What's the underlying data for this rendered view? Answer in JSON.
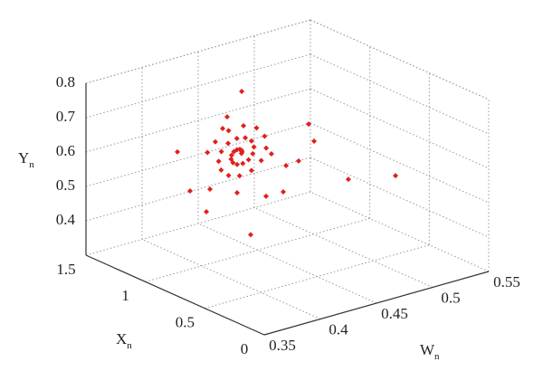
{
  "chart_data": {
    "type": "scatter3d",
    "color": "#e0201b",
    "grid": true,
    "xlabel": {
      "text": "W",
      "sub": "n"
    },
    "ylabel": {
      "text": "X",
      "sub": "n"
    },
    "zlabel": {
      "text": "Y",
      "sub": "n"
    },
    "xlim": [
      0.35,
      0.55
    ],
    "xticks": [
      0.35,
      0.4,
      0.45,
      0.5,
      0.55
    ],
    "ylim": [
      0,
      1.5
    ],
    "yticks": [
      0,
      0.5,
      1,
      1.5
    ],
    "zlim": [
      0.3,
      0.8
    ],
    "zticks": [
      0.4,
      0.5,
      0.6,
      0.7,
      0.8
    ],
    "x": [
      0.4568,
      0.4573,
      0.4569,
      0.4553,
      0.4528,
      0.45,
      0.448,
      0.4476,
      0.4492,
      0.4529,
      0.458,
      0.4631,
      0.4669,
      0.4679,
      0.4657,
      0.4602,
      0.4527,
      0.4449,
      0.4389,
      0.4365,
      0.4387,
      0.4453,
      0.4551,
      0.4657,
      0.4744,
      0.4788,
      0.4774,
      0.4702,
      0.4586,
      0.4453,
      0.4335,
      0.4265,
      0.457,
      0.3997,
      0.411,
      0.4255,
      0.465,
      0.5166,
      0.5215,
      0.4885,
      0.5305,
      0.5077,
      0.4965,
      0.494,
      0.4787,
      0.4529,
      0.4287,
      0.44,
      0.444,
      0.4835
    ],
    "y": [
      1.2,
      1.2,
      1.2,
      1.2,
      1.2,
      1.2,
      1.2,
      1.2,
      1.2,
      1.2,
      1.2,
      1.2,
      1.2,
      1.2,
      1.2,
      1.2,
      1.2,
      1.2,
      1.2,
      1.2,
      1.2,
      1.2,
      1.2,
      1.2,
      1.2,
      1.2,
      1.2,
      1.2,
      1.2,
      1.2,
      1.2,
      1.2,
      1.2,
      1.2,
      1.2,
      1.2,
      1.2,
      1.2,
      1.2,
      0.6,
      0.6,
      1.2,
      1.2,
      1.2,
      1.2,
      1.2,
      1.2,
      1.2,
      1.2,
      1.2
    ],
    "z": [
      0.544,
      0.5478,
      0.5529,
      0.5572,
      0.5584,
      0.5551,
      0.547,
      0.5356,
      0.524,
      0.5155,
      0.5135,
      0.5197,
      0.5337,
      0.5525,
      0.5719,
      0.5862,
      0.5911,
      0.5841,
      0.5658,
      0.5398,
      0.5123,
      0.4905,
      0.4805,
      0.4861,
      0.507,
      0.5393,
      0.5751,
      0.6057,
      0.6227,
      0.6207,
      0.5991,
      0.5746,
      0.724,
      0.601,
      0.477,
      0.403,
      0.3,
      0.574,
      0.52,
      0.532,
      0.504,
      0.475,
      0.472,
      0.398,
      0.399,
      0.433,
      0.466,
      0.632,
      0.662,
      0.518
    ]
  }
}
